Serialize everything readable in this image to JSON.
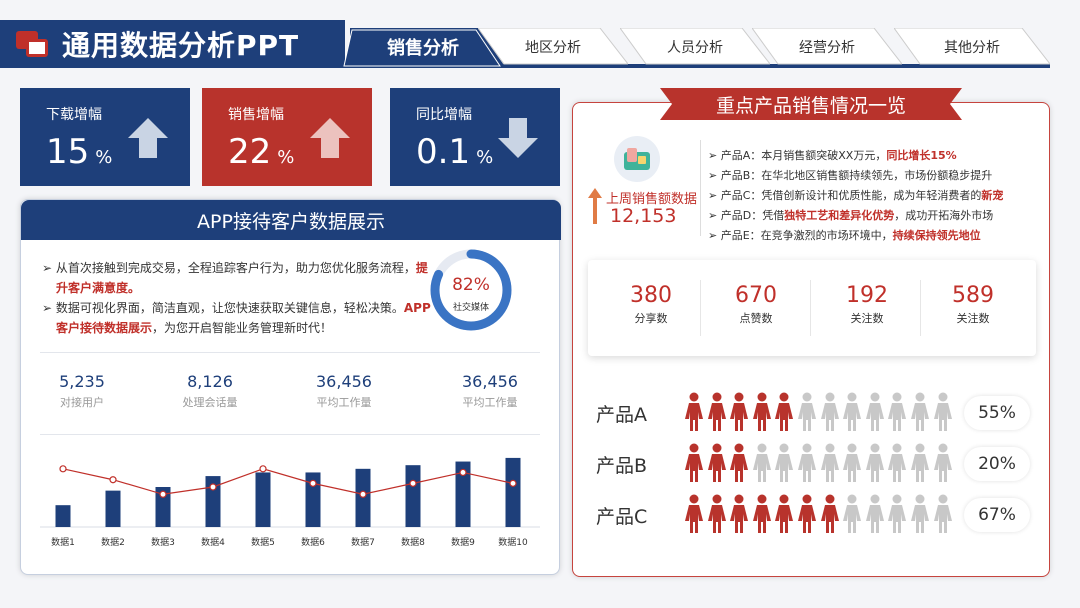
{
  "header": {
    "title": "通用数据分析PPT",
    "tabs": [
      "销售分析",
      "地区分析",
      "人员分析",
      "经营分析",
      "其他分析"
    ],
    "active_tab": 0
  },
  "kpis": [
    {
      "label": "下载增幅",
      "value": "15",
      "unit": "%",
      "trend": "up",
      "color": "#1e3f7a"
    },
    {
      "label": "销售增幅",
      "value": "22",
      "unit": "%",
      "trend": "up",
      "color": "#b8332c"
    },
    {
      "label": "同比增幅",
      "value": "0.1",
      "unit": "%",
      "trend": "down",
      "color": "#1e3f7a"
    }
  ],
  "app_panel": {
    "title": "APP接待客户数据展示",
    "bullet1_a": "从首次接触到完成交易，全程追踪客户行为，助力您优化服务流程，",
    "bullet1_b": "提升客户满意度。",
    "bullet2_a": "数据可视化界面，简洁直观，让您快速获取关键信息，轻松决策。",
    "bullet2_b": "APP客户接待数据展示",
    "bullet2_c": "，为您开启智能业务管理新时代！",
    "ring": {
      "value": "82%",
      "fraction": 0.82,
      "label": "社交媒体"
    },
    "stats": [
      {
        "value": "5,235",
        "label": "对接用户"
      },
      {
        "value": "8,126",
        "label": "处理会话量"
      },
      {
        "value": "36,456",
        "label": "平均工作量"
      },
      {
        "value": "36,456",
        "label": "平均工作量"
      }
    ]
  },
  "chart_data": {
    "type": "bar",
    "categories": [
      "数据1",
      "数据2",
      "数据3",
      "数据4",
      "数据5",
      "数据6",
      "数据7",
      "数据8",
      "数据9",
      "数据10"
    ],
    "series": [
      {
        "type": "bar",
        "values": [
          3,
          5,
          5.5,
          7,
          7.5,
          7.5,
          8,
          8.5,
          9,
          9.5
        ]
      },
      {
        "type": "line",
        "values": [
          8,
          6.5,
          4.5,
          5.5,
          8,
          6,
          4.5,
          6,
          7.5,
          6
        ]
      }
    ],
    "ylim": [
      0,
      11
    ],
    "colors": {
      "bar": "#1e3f7a",
      "line": "#c0302a"
    }
  },
  "product_panel": {
    "title": "重点产品销售情况一览",
    "weekly_label": "上周销售额数据",
    "weekly_value": "12,153",
    "items": [
      {
        "a": "产品A：本月销售额突破XX万元，",
        "b": "同比增长15%",
        "c": ""
      },
      {
        "a": "产品B：在华北地区销售额持续领先，市场份额稳步提升",
        "b": "",
        "c": ""
      },
      {
        "a": "产品C：凭借创新设计和优质性能，成为年轻消费者的",
        "b": "新宠",
        "c": ""
      },
      {
        "a": "产品D：凭借",
        "b": "独特工艺和差异化优势",
        "c": "，成功开拓海外市场"
      },
      {
        "a": "产品E：在竞争激烈的市场环境中，",
        "b": "持续保持领先地位",
        "c": ""
      }
    ],
    "metrics": [
      {
        "value": "380",
        "label": "分享数"
      },
      {
        "value": "670",
        "label": "点赞数"
      },
      {
        "value": "192",
        "label": "关注数"
      },
      {
        "value": "589",
        "label": "关注数"
      }
    ],
    "rows": [
      {
        "label": "产品A",
        "pct": "55%",
        "filled": 5,
        "total": 12
      },
      {
        "label": "产品B",
        "pct": "20%",
        "filled": 3,
        "total": 12
      },
      {
        "label": "产品C",
        "pct": "67%",
        "filled": 7,
        "total": 12
      }
    ]
  }
}
